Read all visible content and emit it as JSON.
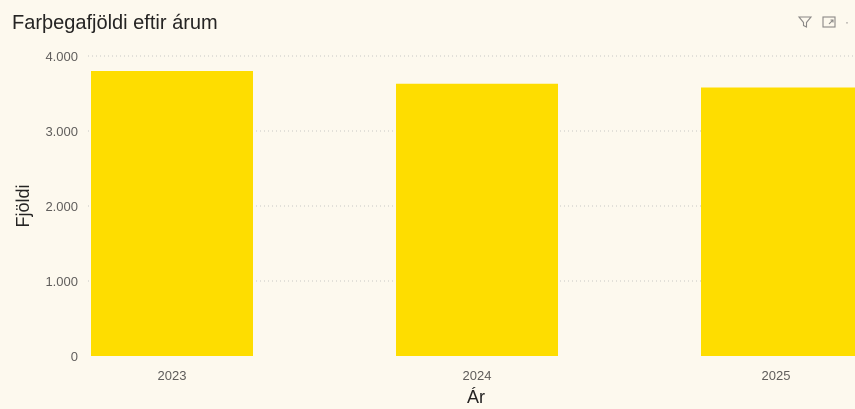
{
  "visual": {
    "title": "Farþegafjöldi eftir árum",
    "icons": [
      "filter-icon",
      "focus-mode-icon",
      "more-options-icon"
    ]
  },
  "chart_data": {
    "type": "bar",
    "title": "Farþegafjöldi eftir árum",
    "xlabel": "Ár",
    "ylabel": "Fjöldi",
    "categories": [
      "2023",
      "2024",
      "2025"
    ],
    "series": [
      {
        "values": [
          3800,
          3630,
          3580
        ],
        "color": "#fedd00"
      }
    ],
    "ylim": [
      0,
      4000
    ],
    "yticks": [
      {
        "value": 0,
        "label": "0"
      },
      {
        "value": 1000,
        "label": "1.000"
      },
      {
        "value": 2000,
        "label": "2.000"
      },
      {
        "value": 3000,
        "label": "3.000"
      },
      {
        "value": 4000,
        "label": "4.000"
      }
    ],
    "grid": "horizontal dotted",
    "legend": "none"
  }
}
